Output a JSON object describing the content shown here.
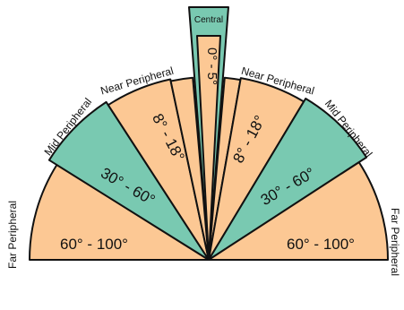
{
  "colors": {
    "peach": "#fcc894",
    "teal": "#79c9b1",
    "outline": "#111111"
  },
  "central_label": "Central",
  "central_range": "0° - 5°",
  "left": {
    "near_label": "Near Peripheral",
    "near_range": "8° - 18°",
    "mid_label": "Mid Peripheral",
    "mid_range": "30° - 60°",
    "far_label": "Far Peripheral",
    "far_range": "60° - 100°"
  },
  "right": {
    "near_label": "Near Peripheral",
    "near_range": "8° - 18°",
    "mid_label": "Mid Peripheral",
    "mid_range": "30° - 60°",
    "far_label": "Far Peripheral",
    "far_range": "60° - 100°"
  }
}
